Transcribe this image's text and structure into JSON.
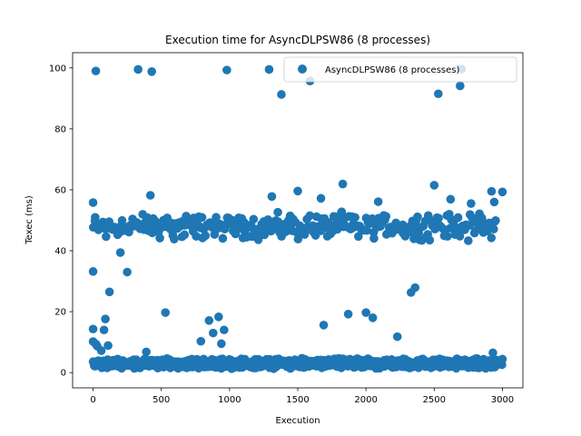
{
  "chart_data": {
    "type": "scatter",
    "title": "Execution time for AsyncDLPSW86 (8 processes)",
    "xlabel": "Execution",
    "ylabel": "Texec (ms)",
    "xlim": [
      -150,
      3150
    ],
    "ylim": [
      -5,
      105
    ],
    "xticks": [
      0,
      500,
      1000,
      1500,
      2000,
      2500,
      3000
    ],
    "yticks": [
      0,
      20,
      40,
      60,
      80,
      100
    ],
    "grid": false,
    "legend": "top-right",
    "marker_color": "#1f77b4",
    "series": [
      {
        "name": "AsyncDLPSW86 (8 processes)",
        "points": [
          [
            20,
            99
          ],
          [
            330,
            99.5
          ],
          [
            430,
            98.8
          ],
          [
            980,
            99.3
          ],
          [
            1290,
            99.5
          ],
          [
            1380,
            91.3
          ],
          [
            1590,
            95.7
          ],
          [
            2530,
            91.5
          ],
          [
            2690,
            94.1
          ],
          [
            2700,
            99.6
          ],
          [
            0,
            55.8
          ],
          [
            420,
            58.2
          ],
          [
            1310,
            57.8
          ],
          [
            1500,
            59.6
          ],
          [
            1670,
            57.2
          ],
          [
            1830,
            61.9
          ],
          [
            2090,
            56.1
          ],
          [
            2500,
            61.5
          ],
          [
            2620,
            56.9
          ],
          [
            2770,
            55.5
          ],
          [
            2920,
            59.5
          ],
          [
            2940,
            56
          ],
          [
            3000,
            59.3
          ],
          [
            200,
            39.4
          ],
          [
            250,
            33
          ],
          [
            0,
            33.2
          ],
          [
            2330,
            26.3
          ],
          [
            2360,
            27.9
          ],
          [
            120,
            26.5
          ],
          [
            530,
            19.7
          ],
          [
            850,
            17.1
          ],
          [
            920,
            18.3
          ],
          [
            1870,
            19.2
          ],
          [
            2000,
            19.7
          ],
          [
            2050,
            18
          ],
          [
            1690,
            15.6
          ],
          [
            90,
            17.6
          ],
          [
            80,
            14
          ],
          [
            0,
            14.3
          ],
          [
            790,
            10.3
          ],
          [
            940,
            9.5
          ],
          [
            880,
            13
          ],
          [
            2230,
            11.8
          ],
          [
            960,
            14
          ],
          [
            2930,
            6.5
          ],
          [
            390,
            6.8
          ],
          [
            0,
            10.2
          ],
          [
            30,
            8.7
          ],
          [
            60,
            7.2
          ],
          [
            110,
            8.9
          ],
          [
            20,
            9.4
          ]
        ],
        "bands": [
          {
            "x_range": [
              0,
              2950
            ],
            "y_range": [
              43,
              53
            ],
            "count": 320,
            "step": 9
          },
          {
            "x_range": [
              0,
              3000
            ],
            "y_range": [
              1.2,
              4.8
            ],
            "count": 900,
            "step": 3
          }
        ]
      }
    ]
  }
}
